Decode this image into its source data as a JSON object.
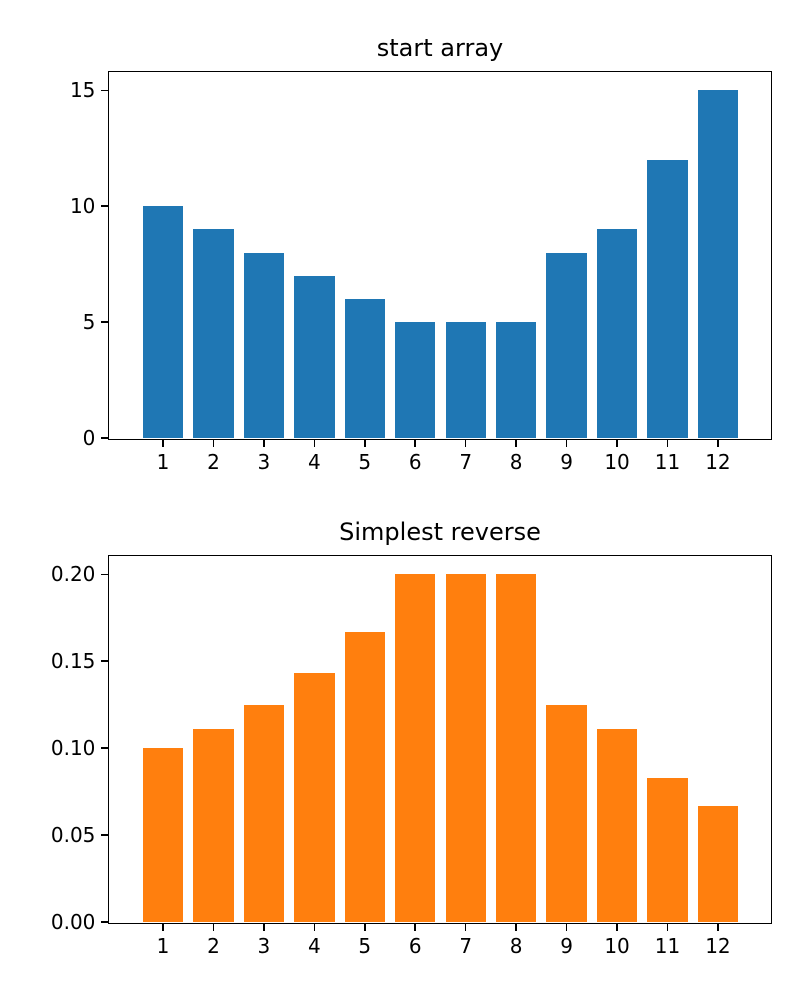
{
  "figure": {
    "background_color": "#ffffff",
    "text_color": "#000000"
  },
  "chart_data": [
    {
      "type": "bar",
      "title": "start array",
      "categories": [
        1,
        2,
        3,
        4,
        5,
        6,
        7,
        8,
        9,
        10,
        11,
        12
      ],
      "values": [
        10,
        9,
        8,
        7,
        6,
        5,
        5,
        5,
        8,
        9,
        12,
        15
      ],
      "bar_color": "#1f77b4",
      "xlabel": "",
      "ylabel": "",
      "ylim": [
        0,
        15.75
      ],
      "yticks": [
        0,
        5,
        10,
        15
      ],
      "ytick_labels": [
        "0",
        "5",
        "10",
        "15"
      ],
      "grid": false,
      "legend_position": "none"
    },
    {
      "type": "bar",
      "title": "Simplest reverse",
      "categories": [
        1,
        2,
        3,
        4,
        5,
        6,
        7,
        8,
        9,
        10,
        11,
        12
      ],
      "values": [
        0.1,
        0.111,
        0.125,
        0.143,
        0.167,
        0.2,
        0.2,
        0.2,
        0.125,
        0.111,
        0.083,
        0.067
      ],
      "bar_color": "#ff7f0e",
      "xlabel": "",
      "ylabel": "",
      "ylim": [
        0,
        0.21
      ],
      "yticks": [
        0.0,
        0.05,
        0.1,
        0.15,
        0.2
      ],
      "ytick_labels": [
        "0.00",
        "0.05",
        "0.10",
        "0.15",
        "0.20"
      ],
      "grid": false,
      "legend_position": "none"
    }
  ]
}
